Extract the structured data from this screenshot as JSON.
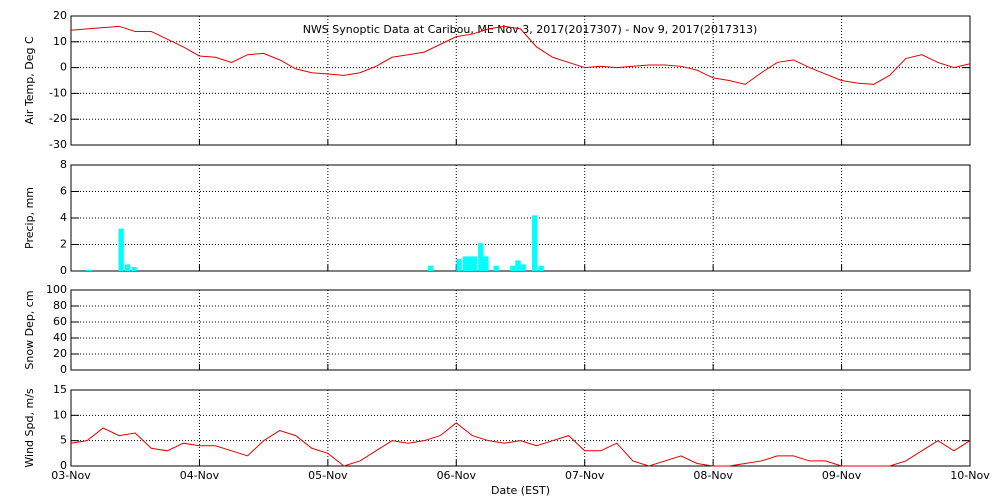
{
  "chart_data": [
    {
      "type": "line",
      "title": "NWS Synoptic Data at Caribou, ME   Nov  3, 2017(2017307) - Nov  9, 2017(2017313)",
      "ylabel": "Air Temp, Deg C",
      "color": "#e00000",
      "x": [
        3,
        3.125,
        3.25,
        3.375,
        3.5,
        3.625,
        3.75,
        3.875,
        4,
        4.125,
        4.25,
        4.375,
        4.5,
        4.625,
        4.75,
        4.875,
        5,
        5.125,
        5.25,
        5.375,
        5.5,
        5.625,
        5.75,
        5.875,
        6,
        6.125,
        6.25,
        6.375,
        6.5,
        6.625,
        6.75,
        6.875,
        7,
        7.125,
        7.25,
        7.375,
        7.5,
        7.625,
        7.75,
        7.875,
        8,
        8.125,
        8.25,
        8.375,
        8.5,
        8.625,
        8.75,
        8.875,
        9,
        9.125,
        9.25,
        9.375,
        9.5,
        9.625,
        9.75,
        9.875,
        10
      ],
      "values": [
        14.5,
        15,
        15.5,
        16,
        14,
        14,
        11,
        8,
        4.5,
        4,
        2,
        5,
        5.5,
        3,
        -0.5,
        -2,
        -2.5,
        -3,
        -2,
        0.5,
        4,
        5,
        6,
        9,
        12,
        13,
        15,
        16,
        15,
        8,
        4,
        2,
        0,
        0.5,
        0,
        0.5,
        1,
        1,
        0.5,
        -1,
        -4,
        -5,
        -6.5,
        -2,
        2,
        3,
        0,
        -2.5,
        -5,
        -6,
        -6.5,
        -3,
        3.5,
        5,
        2,
        0,
        1.5
      ],
      "ylim": [
        -30,
        20
      ],
      "yticks": [
        -30,
        -20,
        -10,
        0,
        10,
        20
      ],
      "grid": true
    },
    {
      "type": "bar",
      "ylabel": "Precip, mm",
      "color": "#00ffff",
      "x": [
        3.12,
        3.37,
        3.42,
        3.47,
        5.78,
        6.0,
        6.05,
        6.08,
        6.12,
        6.17,
        6.21,
        6.29,
        6.42,
        6.46,
        6.5,
        6.59,
        6.64
      ],
      "values": [
        0.1,
        3.2,
        0.5,
        0.3,
        0.4,
        0.9,
        1.1,
        1.1,
        1.1,
        2.1,
        1.1,
        0.4,
        0.4,
        0.8,
        0.5,
        4.2,
        0.4
      ],
      "ylim": [
        0,
        8
      ],
      "yticks": [
        0,
        2,
        4,
        6,
        8
      ],
      "grid": true
    },
    {
      "type": "line",
      "ylabel": "Snow Dep, cm",
      "color": "#e00000",
      "x": [],
      "values": [],
      "ylim": [
        0,
        100
      ],
      "yticks": [
        0,
        20,
        40,
        60,
        80,
        100
      ],
      "grid": true
    },
    {
      "type": "line",
      "ylabel": "Wind Spd, m/s",
      "xlabel": "Date (EST)",
      "color": "#e00000",
      "x": [
        3,
        3.125,
        3.25,
        3.375,
        3.5,
        3.625,
        3.75,
        3.875,
        4,
        4.125,
        4.25,
        4.375,
        4.5,
        4.625,
        4.75,
        4.875,
        5,
        5.125,
        5.25,
        5.375,
        5.5,
        5.625,
        5.75,
        5.875,
        6,
        6.125,
        6.25,
        6.375,
        6.5,
        6.625,
        6.75,
        6.875,
        7,
        7.125,
        7.25,
        7.375,
        7.5,
        7.625,
        7.75,
        7.875,
        8,
        8.125,
        8.25,
        8.375,
        8.5,
        8.625,
        8.75,
        8.875,
        9,
        9.125,
        9.25,
        9.375,
        9.5,
        9.625,
        9.75,
        9.875,
        10
      ],
      "values": [
        4.5,
        5,
        7.5,
        6,
        6.5,
        3.5,
        3,
        4.5,
        4,
        4,
        3,
        2,
        5,
        7,
        6,
        3.5,
        2.5,
        0,
        1,
        3,
        5,
        4.5,
        5,
        6,
        8.5,
        6,
        5,
        4.5,
        5,
        4,
        5,
        6,
        3,
        3,
        4.5,
        1,
        0,
        1,
        2,
        0.5,
        0,
        0,
        0.5,
        1,
        2,
        2,
        1,
        1,
        0,
        0,
        0,
        0,
        1,
        3,
        5,
        3,
        5
      ],
      "ylim": [
        0,
        15
      ],
      "yticks": [
        0,
        5,
        10,
        15
      ],
      "grid": true,
      "xlim": [
        3,
        10
      ],
      "xticks": [
        {
          "value": 3,
          "label": "03-Nov"
        },
        {
          "value": 4,
          "label": "04-Nov"
        },
        {
          "value": 5,
          "label": "05-Nov"
        },
        {
          "value": 6,
          "label": "06-Nov"
        },
        {
          "value": 7,
          "label": "07-Nov"
        },
        {
          "value": 8,
          "label": "08-Nov"
        },
        {
          "value": 9,
          "label": "09-Nov"
        },
        {
          "value": 10,
          "label": "10-Nov"
        }
      ]
    }
  ]
}
